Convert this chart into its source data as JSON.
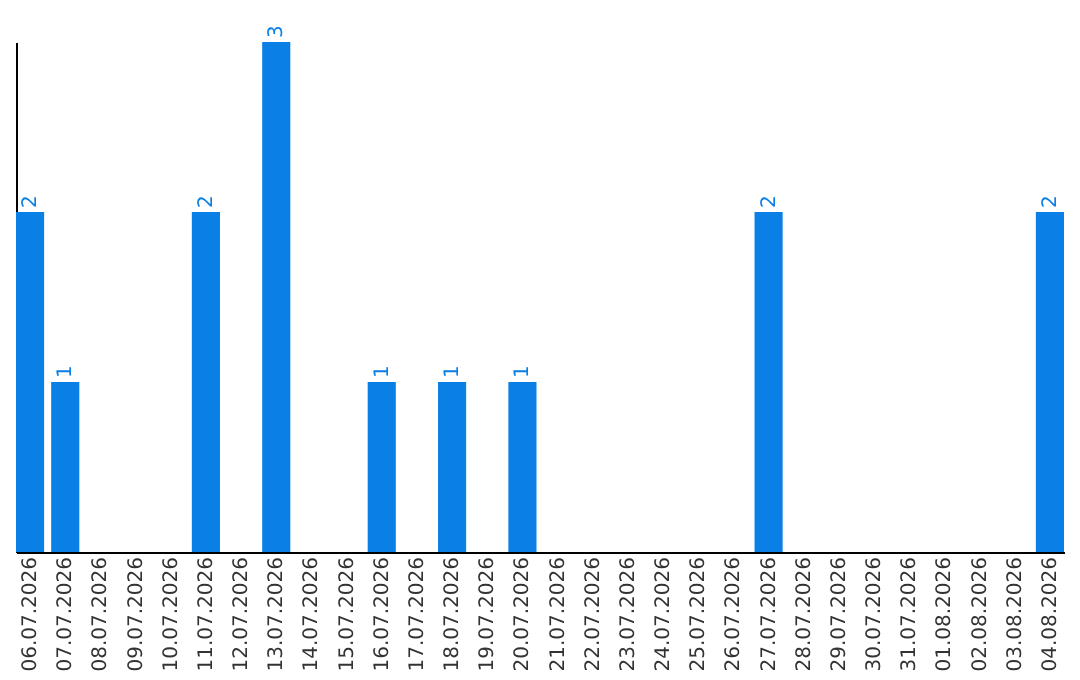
{
  "chart_data": {
    "type": "bar",
    "categories": [
      "06.07.2026",
      "07.07.2026",
      "08.07.2026",
      "09.07.2026",
      "10.07.2026",
      "11.07.2026",
      "12.07.2026",
      "13.07.2026",
      "14.07.2026",
      "15.07.2026",
      "16.07.2026",
      "17.07.2026",
      "18.07.2026",
      "19.07.2026",
      "20.07.2026",
      "21.07.2026",
      "22.07.2026",
      "23.07.2026",
      "24.07.2026",
      "25.07.2026",
      "26.07.2026",
      "27.07.2026",
      "28.07.2026",
      "29.07.2026",
      "30.07.2026",
      "31.07.2026",
      "01.08.2026",
      "02.08.2026",
      "03.08.2026",
      "04.08.2026"
    ],
    "values": [
      2,
      1,
      0,
      0,
      0,
      2,
      0,
      3,
      0,
      0,
      1,
      0,
      1,
      0,
      1,
      0,
      0,
      0,
      0,
      0,
      0,
      2,
      0,
      0,
      0,
      0,
      0,
      0,
      0,
      2
    ],
    "value_labels": [
      "2",
      "1",
      null,
      null,
      null,
      "2",
      null,
      "3",
      null,
      null,
      "1",
      null,
      "1",
      null,
      "1",
      null,
      null,
      null,
      null,
      null,
      null,
      "2",
      null,
      null,
      null,
      null,
      null,
      null,
      null,
      "2"
    ],
    "color": "#0a7fe6",
    "grid": false,
    "tick_labels": "x"
  }
}
